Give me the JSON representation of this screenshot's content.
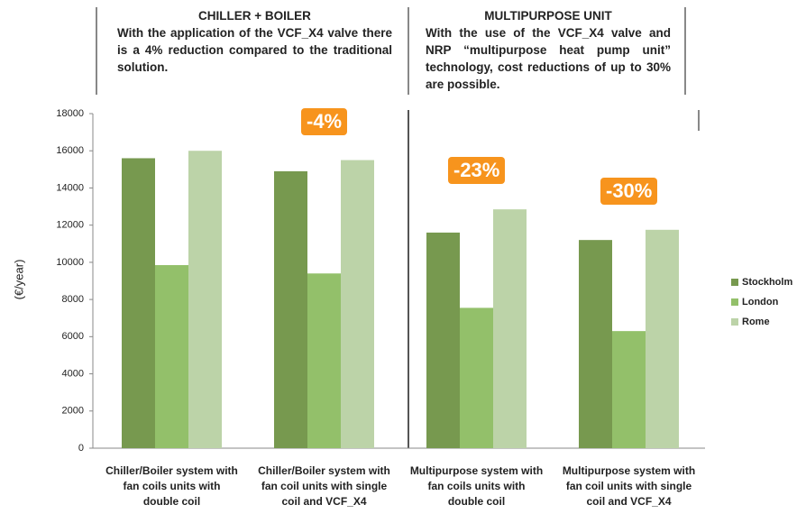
{
  "chart_data": {
    "type": "bar",
    "headers": [
      {
        "title": "CHILLER + BOILER",
        "text": "With the application of the VCF_X4 valve there is a 4% reduction compared to the traditional solution."
      },
      {
        "title": "MULTIPURPOSE UNIT",
        "text": "With the use of the VCF_X4 valve and NRP “multipurpose heat pump unit” technology, cost reductions of up to 30% are possible."
      }
    ],
    "y_label": "(€/year)",
    "categories": [
      "Chiller/Boiler system with fan coils units with double coil",
      "Chiller/Boiler system with fan coil units with single coil and VCF_X4",
      "Multipurpose system with fan coils units with double coil",
      "Multipurpose system with fan coil units with single coil and VCF_X4"
    ],
    "series": [
      {
        "name": "Stockholm",
        "color": "#77994f",
        "values": [
          15600,
          14900,
          11600,
          11200
        ]
      },
      {
        "name": "London",
        "color": "#93c06a",
        "values": [
          9850,
          9400,
          7550,
          6300
        ]
      },
      {
        "name": "Rome",
        "color": "#bcd3a8",
        "values": [
          16000,
          15500,
          12850,
          11750
        ]
      }
    ],
    "annotations": [
      "-4%",
      "-23%",
      "-30%"
    ],
    "annotation_color": "#f7941d",
    "ylim": [
      0,
      18000
    ],
    "yticks": [
      0,
      2000,
      4000,
      6000,
      8000,
      10000,
      12000,
      14000,
      16000,
      18000
    ],
    "grid": false
  }
}
